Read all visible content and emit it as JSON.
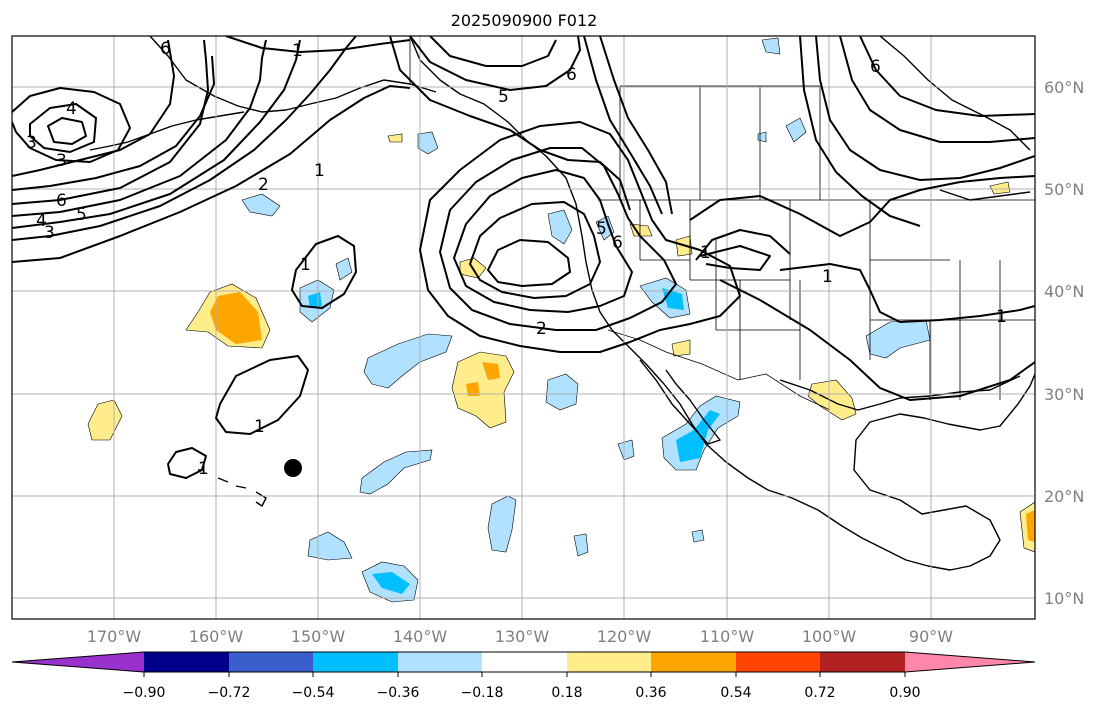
{
  "title": "2025090900 F012",
  "longitude_labels": [
    "170°W",
    "160°W",
    "150°W",
    "140°W",
    "130°W",
    "120°W",
    "110°W",
    "100°W",
    "90°W"
  ],
  "latitude_labels": [
    "60°N",
    "50°N",
    "40°N",
    "30°N",
    "20°N",
    "10°N"
  ],
  "colorbar": {
    "ticks": [
      "−0.90",
      "−0.72",
      "−0.54",
      "−0.36",
      "−0.18",
      "0.18",
      "0.36",
      "0.54",
      "0.72",
      "0.90"
    ],
    "colors": [
      "#9932cc",
      "#00008b",
      "#3a5fcd",
      "#00bfff",
      "#b0e2ff",
      "#ffffff",
      "#ffec8b",
      "#ffa500",
      "#ff4500",
      "#b22222",
      "#ff88aa"
    ]
  },
  "contour_labels": [
    "1",
    "1",
    "1",
    "1",
    "1",
    "1",
    "1",
    "1",
    "2",
    "2",
    "3",
    "3",
    "3",
    "4",
    "4",
    "5",
    "5",
    "5",
    "6",
    "6",
    "6",
    "6",
    "6"
  ],
  "marker": "black-dot"
}
